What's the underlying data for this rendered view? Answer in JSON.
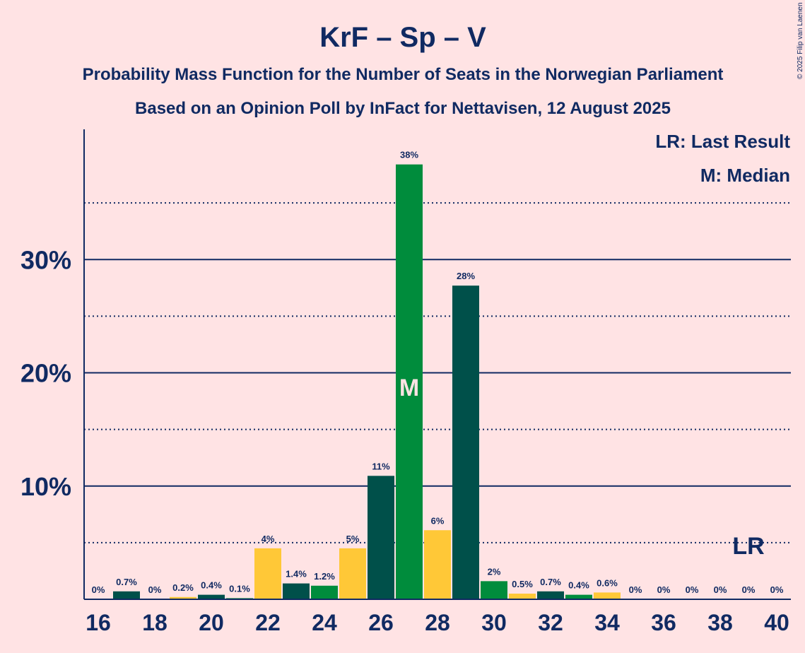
{
  "chart_data": {
    "type": "bar",
    "title": "KrF – Sp – V",
    "subtitle_1": "Probability Mass Function for the Number of Seats in the Norwegian Parliament",
    "subtitle_2": "Based on an Opinion Poll by InFact for Nettavisen, 12 August 2025",
    "copyright": "© 2025 Filip van Laenen",
    "legend": {
      "last_result": "LR: Last Result",
      "median": "M: Median"
    },
    "ylim": [
      0,
      41.5
    ],
    "y_major_ticks": [
      10,
      20,
      30
    ],
    "y_major_tick_labels": [
      "10%",
      "20%",
      "30%"
    ],
    "y_minor_gridlines": [
      5,
      15,
      25,
      35
    ],
    "x_tick_labels": [
      "16",
      "18",
      "20",
      "22",
      "24",
      "26",
      "28",
      "30",
      "32",
      "34",
      "36",
      "38",
      "40"
    ],
    "x": [
      16,
      17,
      18,
      19,
      20,
      21,
      22,
      23,
      24,
      25,
      26,
      27,
      28,
      29,
      30,
      31,
      32,
      33,
      34,
      35,
      36,
      37,
      38,
      39,
      40
    ],
    "values": [
      0,
      0.7,
      0,
      0.2,
      0.4,
      0.1,
      4.5,
      1.4,
      1.2,
      4.5,
      10.9,
      38.4,
      6.1,
      27.7,
      1.6,
      0.5,
      0.7,
      0.4,
      0.6,
      0,
      0,
      0,
      0,
      0,
      0
    ],
    "labels": [
      "0%",
      "0.7%",
      "0%",
      "0.2%",
      "0.4%",
      "0.1%",
      "4%",
      "1.4%",
      "1.2%",
      "5%",
      "11%",
      "38%",
      "6%",
      "28%",
      "2%",
      "0.5%",
      "0.7%",
      "0.4%",
      "0.6%",
      "0%",
      "0%",
      "0%",
      "0%",
      "0%",
      "0%"
    ],
    "median_seat": 27,
    "median_marker": "M",
    "last_result_seat": 39,
    "last_result_marker": "LR",
    "colors": {
      "background": "#ffe3e4",
      "text": "#102a62",
      "dark_green": "#00504a",
      "green": "#008c3c",
      "yellow": "#ffc837"
    },
    "bar_color_cycle": [
      "yellow",
      "dark_green",
      "green"
    ]
  }
}
